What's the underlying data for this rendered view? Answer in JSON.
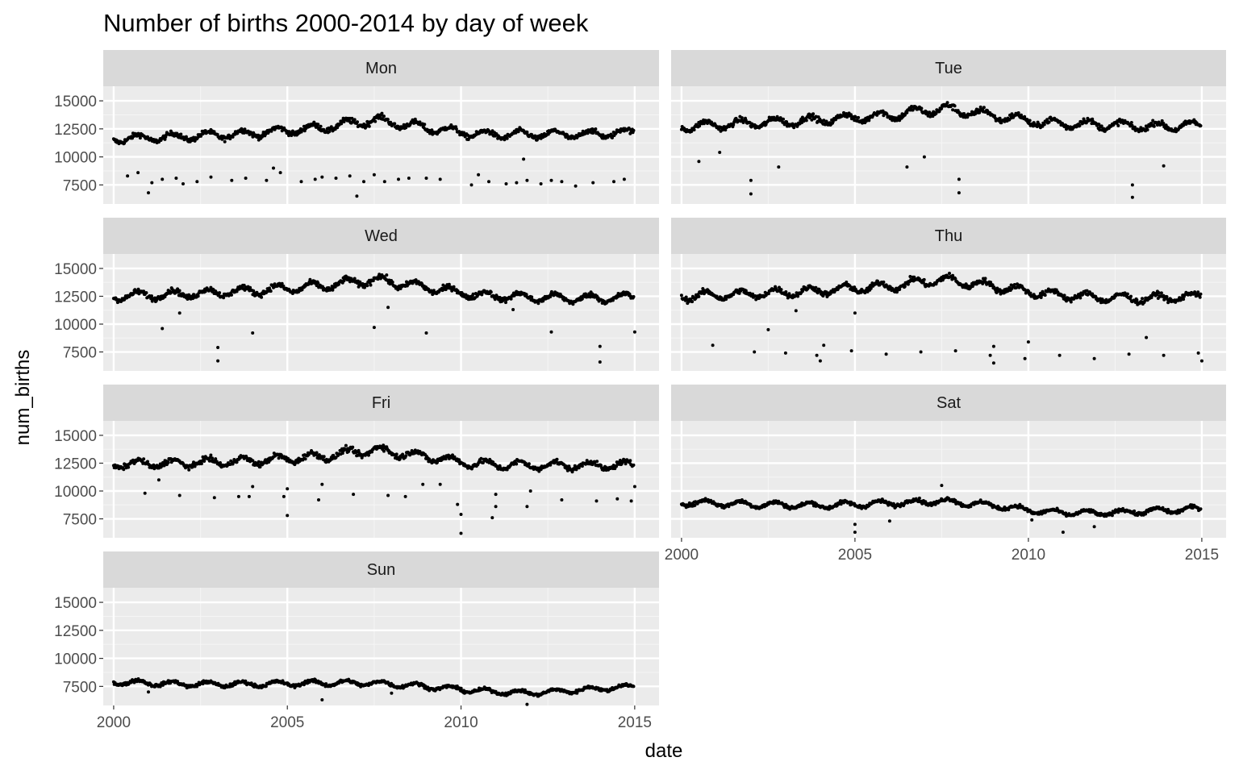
{
  "chart_data": {
    "type": "scatter",
    "title": "Number of births 2000-2014 by day of week",
    "xlabel": "date",
    "ylabel": "num_births",
    "xlim": [
      1999.7,
      2015.7
    ],
    "ylim": [
      5800,
      16300
    ],
    "x_ticks": [
      2000,
      2005,
      2010,
      2015
    ],
    "x_tick_labels": [
      "2000",
      "2005",
      "2010",
      "2015"
    ],
    "y_ticks": [
      7500,
      10000,
      12500,
      15000
    ],
    "y_tick_labels": [
      "7500",
      "10000",
      "12500",
      "15000"
    ],
    "grid": true,
    "point_color": "#000000",
    "panel_background": "#ebebeb",
    "strip_background": "#d9d9d9",
    "panels": [
      {
        "name": "Mon",
        "outliers": [
          [
            2000.4,
            8300
          ],
          [
            2000.7,
            8600
          ],
          [
            2001.0,
            6800
          ],
          [
            2001.1,
            7700
          ],
          [
            2001.4,
            8000
          ],
          [
            2001.8,
            8100
          ],
          [
            2002.0,
            7600
          ],
          [
            2002.4,
            7800
          ],
          [
            2002.8,
            8200
          ],
          [
            2003.4,
            7900
          ],
          [
            2003.8,
            8100
          ],
          [
            2004.4,
            7900
          ],
          [
            2004.6,
            9000
          ],
          [
            2004.8,
            8600
          ],
          [
            2005.4,
            7800
          ],
          [
            2005.8,
            8000
          ],
          [
            2006.0,
            8200
          ],
          [
            2006.4,
            8100
          ],
          [
            2006.8,
            8300
          ],
          [
            2007.0,
            6500
          ],
          [
            2007.2,
            7800
          ],
          [
            2007.5,
            8400
          ],
          [
            2007.8,
            7800
          ],
          [
            2008.2,
            8000
          ],
          [
            2008.5,
            8100
          ],
          [
            2009.0,
            8100
          ],
          [
            2009.4,
            8000
          ],
          [
            2010.3,
            7500
          ],
          [
            2010.5,
            8400
          ],
          [
            2010.8,
            7800
          ],
          [
            2011.3,
            7600
          ],
          [
            2011.6,
            7700
          ],
          [
            2011.9,
            7900
          ],
          [
            2012.3,
            7600
          ],
          [
            2012.6,
            7900
          ],
          [
            2012.9,
            7800
          ],
          [
            2013.3,
            7400
          ],
          [
            2013.8,
            7700
          ],
          [
            2014.4,
            7800
          ],
          [
            2014.7,
            8000
          ],
          [
            2011.8,
            9800
          ]
        ]
      },
      {
        "name": "Tue",
        "outliers": [
          [
            2000.5,
            9600
          ],
          [
            2001.1,
            10400
          ],
          [
            2002.0,
            6700
          ],
          [
            2002.0,
            7900
          ],
          [
            2002.8,
            9100
          ],
          [
            2006.5,
            9100
          ],
          [
            2007.0,
            10000
          ],
          [
            2008.0,
            6800
          ],
          [
            2008.0,
            8000
          ],
          [
            2013.0,
            6400
          ],
          [
            2013.0,
            7500
          ],
          [
            2013.9,
            9200
          ]
        ]
      },
      {
        "name": "Wed",
        "outliers": [
          [
            2001.4,
            9600
          ],
          [
            2001.9,
            11000
          ],
          [
            2003.0,
            6700
          ],
          [
            2003.0,
            7900
          ],
          [
            2004.0,
            9200
          ],
          [
            2007.5,
            9700
          ],
          [
            2009.0,
            9200
          ],
          [
            2012.6,
            9300
          ],
          [
            2014.0,
            6600
          ],
          [
            2014.0,
            8000
          ],
          [
            2015.0,
            9300
          ],
          [
            2007.9,
            11500
          ],
          [
            2011.5,
            11300
          ]
        ]
      },
      {
        "name": "Thu",
        "outliers": [
          [
            2000.9,
            8100
          ],
          [
            2002.1,
            7500
          ],
          [
            2002.5,
            9500
          ],
          [
            2003.0,
            7400
          ],
          [
            2003.9,
            7200
          ],
          [
            2004.0,
            6700
          ],
          [
            2004.1,
            8100
          ],
          [
            2004.9,
            7600
          ],
          [
            2005.0,
            11000
          ],
          [
            2005.9,
            7300
          ],
          [
            2006.9,
            7500
          ],
          [
            2007.9,
            7600
          ],
          [
            2008.9,
            7200
          ],
          [
            2009.0,
            6500
          ],
          [
            2009.0,
            8000
          ],
          [
            2009.9,
            6900
          ],
          [
            2010.0,
            8400
          ],
          [
            2010.9,
            7200
          ],
          [
            2011.9,
            6900
          ],
          [
            2012.9,
            7300
          ],
          [
            2013.4,
            8800
          ],
          [
            2013.9,
            7200
          ],
          [
            2014.9,
            7400
          ],
          [
            2015.0,
            6700
          ],
          [
            2003.3,
            11200
          ]
        ]
      },
      {
        "name": "Fri",
        "outliers": [
          [
            2000.9,
            9800
          ],
          [
            2001.3,
            11000
          ],
          [
            2001.9,
            9600
          ],
          [
            2002.9,
            9400
          ],
          [
            2003.6,
            9500
          ],
          [
            2003.9,
            9500
          ],
          [
            2004.0,
            10400
          ],
          [
            2004.9,
            9500
          ],
          [
            2005.0,
            7800
          ],
          [
            2005.0,
            10200
          ],
          [
            2005.9,
            9200
          ],
          [
            2006.0,
            10600
          ],
          [
            2006.9,
            9700
          ],
          [
            2007.9,
            9600
          ],
          [
            2008.4,
            9500
          ],
          [
            2008.9,
            10600
          ],
          [
            2009.4,
            10600
          ],
          [
            2009.9,
            8800
          ],
          [
            2010.0,
            6200
          ],
          [
            2010.0,
            7900
          ],
          [
            2010.9,
            7600
          ],
          [
            2011.0,
            8600
          ],
          [
            2011.0,
            9700
          ],
          [
            2011.9,
            8600
          ],
          [
            2012.0,
            10000
          ],
          [
            2012.9,
            9200
          ],
          [
            2013.9,
            9100
          ],
          [
            2014.5,
            9300
          ],
          [
            2014.9,
            9100
          ],
          [
            2015.0,
            10400
          ]
        ]
      },
      {
        "name": "Sat",
        "outliers": [
          [
            2005.0,
            6300
          ],
          [
            2005.0,
            7000
          ],
          [
            2006.0,
            7300
          ],
          [
            2007.5,
            10500
          ],
          [
            2011.0,
            6300
          ],
          [
            2011.9,
            6800
          ],
          [
            2010.1,
            7400
          ]
        ]
      },
      {
        "name": "Sun",
        "outliers": [
          [
            2006.0,
            6300
          ],
          [
            2011.9,
            5900
          ],
          [
            2001.0,
            7000
          ],
          [
            2008.0,
            6900
          ]
        ]
      }
    ]
  }
}
